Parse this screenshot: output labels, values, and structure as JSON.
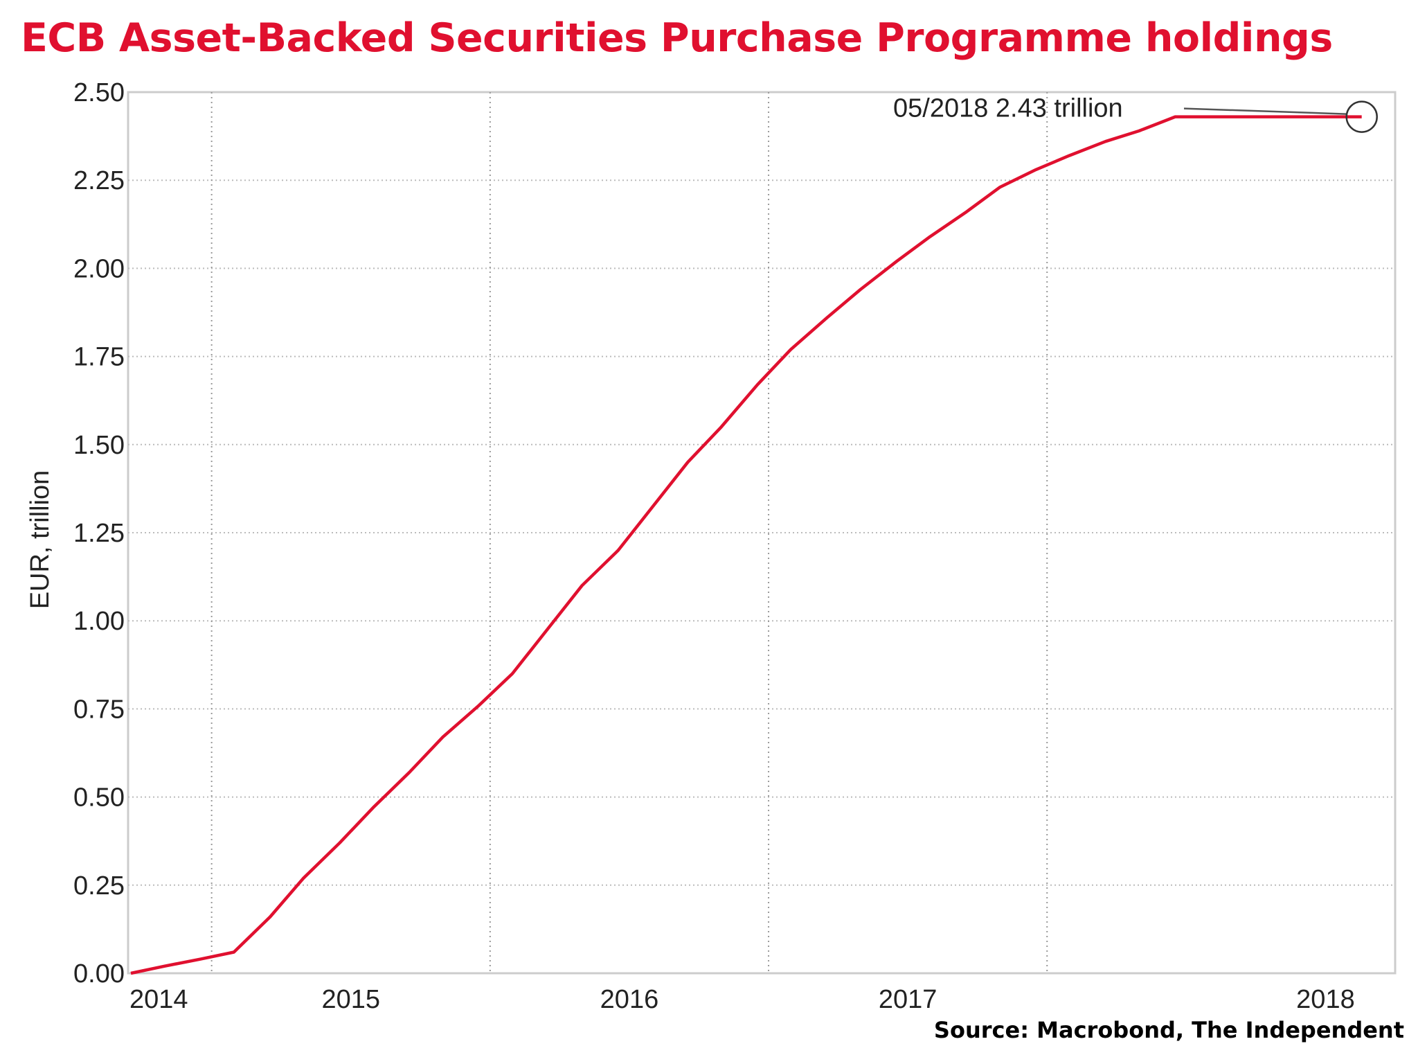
{
  "title": "ECB Asset-Backed Securities Purchase Programme holdings",
  "source": "Source: Macrobond, The Independent",
  "chart_data": {
    "type": "line",
    "title": "ECB Asset-Backed Securities Purchase Programme holdings",
    "xlabel": "",
    "ylabel": "EUR, trillion",
    "xlim": [
      2013.95,
      2018.5
    ],
    "ylim": [
      0,
      2.5
    ],
    "y_ticks": [
      "0.00",
      "0.25",
      "0.50",
      "0.75",
      "1.00",
      "1.25",
      "1.50",
      "1.75",
      "2.00",
      "2.25",
      "2.50"
    ],
    "x_ticks": [
      "2014",
      "2015",
      "2016",
      "2017",
      "2018"
    ],
    "grid": true,
    "line_color": "#e0102f",
    "series": [
      {
        "name": "",
        "x": [
          2013.96,
          2014.08,
          2014.21,
          2014.33,
          2014.46,
          2014.58,
          2014.71,
          2014.83,
          2014.96,
          2015.08,
          2015.21,
          2015.33,
          2015.46,
          2015.58,
          2015.71,
          2015.83,
          2015.96,
          2016.08,
          2016.21,
          2016.33,
          2016.46,
          2016.58,
          2016.71,
          2016.83,
          2016.96,
          2017.08,
          2017.21,
          2017.33,
          2017.46,
          2017.58,
          2017.71,
          2017.83,
          2017.96,
          2018.08,
          2018.21,
          2018.38
        ],
        "y": [
          0.0,
          0.02,
          0.04,
          0.06,
          0.16,
          0.27,
          0.37,
          0.47,
          0.57,
          0.67,
          0.76,
          0.85,
          0.98,
          1.1,
          1.2,
          1.32,
          1.45,
          1.55,
          1.67,
          1.77,
          1.86,
          1.94,
          2.02,
          2.09,
          2.16,
          2.23,
          2.28,
          2.32,
          2.36,
          2.39,
          2.43,
          2.43,
          2.43,
          2.43,
          2.43,
          2.43
        ]
      }
    ],
    "annotation": {
      "label": "05/2018 2.43 trillion",
      "x": 2018.38,
      "y": 2.43
    }
  }
}
